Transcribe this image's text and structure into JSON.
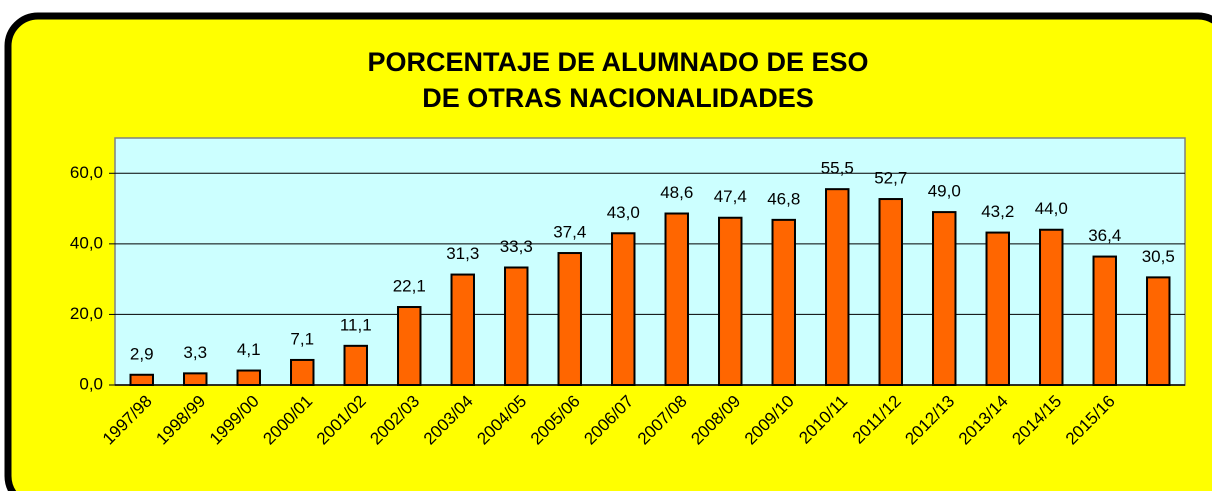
{
  "chart_data": {
    "type": "bar",
    "title": [
      "PORCENTAJE DE ALUMNADO DE ESO",
      "DE OTRAS NACIONALIDADES"
    ],
    "categories": [
      "1997/98",
      "1998/99",
      "1999/00",
      "2000/01",
      "2001/02",
      "2002/03",
      "2003/04",
      "2004/05",
      "2005/06",
      "2006/07",
      "2007/08",
      "2008/09",
      "2009/10",
      "2010/11",
      "2011/12",
      "2012/13",
      "2013/14",
      "2014/15",
      "2015/16",
      null
    ],
    "values": [
      2.9,
      3.3,
      4.1,
      7.1,
      11.1,
      22.1,
      31.3,
      33.3,
      37.4,
      43.0,
      48.6,
      47.4,
      46.8,
      55.5,
      52.7,
      49.0,
      43.2,
      44.0,
      36.4,
      30.5
    ],
    "value_labels": [
      "2,9",
      "3,3",
      "4,1",
      "7,1",
      "11,1",
      "22,1",
      "31,3",
      "33,3",
      "37,4",
      "43,0",
      "48,6",
      "47,4",
      "46,8",
      "55,5",
      "52,7",
      "49,0",
      "43,2",
      "44,0",
      "36,4",
      "30,5"
    ],
    "color": "#ff6600",
    "ylim": [
      0,
      70
    ],
    "yticks": [
      {
        "value": 0,
        "label": "0,0"
      },
      {
        "value": 20,
        "label": "20,0"
      },
      {
        "value": 40,
        "label": "40,0"
      },
      {
        "value": 60,
        "label": "60,0"
      }
    ],
    "grid": true
  }
}
